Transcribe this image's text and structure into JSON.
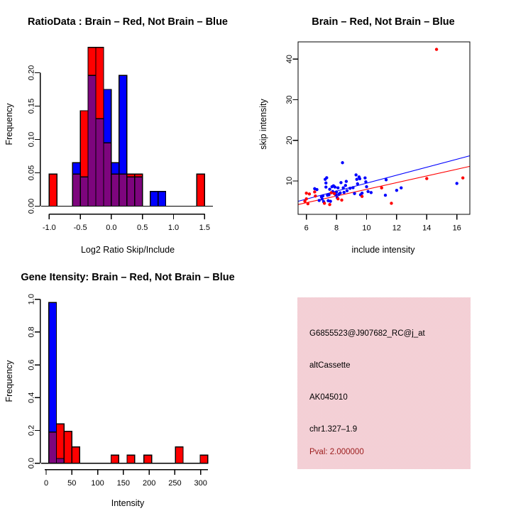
{
  "colors": {
    "brain_red": "#ff0000",
    "not_brain_blue": "#0000ff",
    "overlap_purple": "#7d057d",
    "background": "#ffffff",
    "info_box_pink": "#f6c3cf",
    "info_box_pink_alt": "#f1dcdc",
    "pval_text": "#9b1b1b",
    "axis_text": "#000000"
  },
  "chart_data": [
    {
      "type": "histogram",
      "title": "RatioData : Brain – Red, Not Brain – Blue",
      "xlabel": "Log2 Ratio Skip/Include",
      "ylabel": "Frequency",
      "legend": {
        "brain": "red",
        "not_brain": "blue",
        "overlap": "purple"
      },
      "xlim": [
        -1.13,
        1.63
      ],
      "ylim": [
        0,
        0.239
      ],
      "xticks": [
        -1.0,
        -0.5,
        0.0,
        0.5,
        1.0,
        1.5
      ],
      "xtick_labels": [
        "-1.0",
        "-0.5",
        "0.0",
        "0.5",
        "1.0",
        "1.5"
      ],
      "yticks": [
        0.0,
        0.05,
        0.1,
        0.15,
        0.2
      ],
      "ytick_labels": [
        "0.00",
        "0.05",
        "0.10",
        "0.15",
        "0.20"
      ],
      "bins": [
        {
          "x0": -1.0,
          "x1": -0.875,
          "red": 0.048,
          "blue": 0
        },
        {
          "x0": -0.625,
          "x1": -0.5,
          "red": 0.048,
          "blue": 0.065
        },
        {
          "x0": -0.5,
          "x1": -0.375,
          "red": 0.143,
          "blue": 0.044
        },
        {
          "x0": -0.375,
          "x1": -0.25,
          "red": 0.238,
          "blue": 0.196
        },
        {
          "x0": -0.25,
          "x1": -0.125,
          "red": 0.238,
          "blue": 0.131
        },
        {
          "x0": -0.125,
          "x1": 0.0,
          "red": 0.095,
          "blue": 0.175
        },
        {
          "x0": 0.0,
          "x1": 0.125,
          "red": 0.048,
          "blue": 0.065
        },
        {
          "x0": 0.125,
          "x1": 0.25,
          "red": 0.048,
          "blue": 0.196
        },
        {
          "x0": 0.25,
          "x1": 0.375,
          "red": 0.048,
          "blue": 0.044
        },
        {
          "x0": 0.375,
          "x1": 0.5,
          "red": 0.048,
          "blue": 0.044
        },
        {
          "x0": 0.625,
          "x1": 0.75,
          "red": 0,
          "blue": 0.022
        },
        {
          "x0": 0.75,
          "x1": 0.875,
          "red": 0,
          "blue": 0.022
        },
        {
          "x0": 1.375,
          "x1": 1.5,
          "red": 0.048,
          "blue": 0
        }
      ]
    },
    {
      "type": "scatter",
      "title": "Brain – Red, Not Brain – Blue",
      "xlabel": "include intensity",
      "ylabel": "skip intensity",
      "xlim": [
        5.45,
        16.86
      ],
      "ylim": [
        1.8,
        44.3
      ],
      "xticks": [
        6,
        8,
        10,
        12,
        14,
        16
      ],
      "xtick_labels": [
        "6",
        "8",
        "10",
        "12",
        "14",
        "16"
      ],
      "yticks": [
        10,
        20,
        30,
        40
      ],
      "ytick_labels": [
        "10",
        "20",
        "30",
        "40"
      ],
      "blue_points": [
        [
          6.55,
          8.1
        ],
        [
          6.7,
          7.9
        ],
        [
          6.85,
          5.2
        ],
        [
          7.0,
          6.1
        ],
        [
          7.05,
          5.55
        ],
        [
          7.1,
          6.35
        ],
        [
          7.15,
          4.9
        ],
        [
          7.25,
          10.4
        ],
        [
          7.3,
          9.5
        ],
        [
          7.3,
          8.5
        ],
        [
          7.35,
          10.8
        ],
        [
          7.4,
          6.5
        ],
        [
          7.45,
          5.15
        ],
        [
          7.5,
          6.6
        ],
        [
          7.55,
          7.95
        ],
        [
          7.6,
          5.0
        ],
        [
          7.7,
          8.6
        ],
        [
          7.75,
          7.4
        ],
        [
          7.8,
          8.8
        ],
        [
          7.85,
          7.0
        ],
        [
          7.9,
          8.5
        ],
        [
          7.95,
          6.6
        ],
        [
          8.0,
          7.3
        ],
        [
          8.05,
          5.9
        ],
        [
          8.1,
          8.3
        ],
        [
          8.15,
          6.7
        ],
        [
          8.25,
          7.05
        ],
        [
          8.3,
          9.6
        ],
        [
          8.4,
          14.5
        ],
        [
          8.45,
          8.3
        ],
        [
          8.5,
          7.2
        ],
        [
          8.6,
          8.9
        ],
        [
          8.65,
          9.9
        ],
        [
          8.7,
          7.6
        ],
        [
          8.9,
          8.2
        ],
        [
          9.1,
          8.35
        ],
        [
          9.2,
          6.9
        ],
        [
          9.3,
          11.5
        ],
        [
          9.35,
          10.4
        ],
        [
          9.4,
          9.3
        ],
        [
          9.5,
          11.0
        ],
        [
          9.55,
          10.55
        ],
        [
          9.6,
          6.6
        ],
        [
          9.7,
          7.0
        ],
        [
          9.9,
          10.75
        ],
        [
          9.95,
          9.8
        ],
        [
          10.0,
          8.6
        ],
        [
          10.1,
          7.4
        ],
        [
          10.3,
          7.15
        ],
        [
          11.25,
          6.5
        ],
        [
          11.3,
          10.3
        ],
        [
          12.0,
          7.7
        ],
        [
          12.3,
          8.3
        ],
        [
          16.0,
          9.4
        ]
      ],
      "red_points": [
        [
          5.9,
          5.0
        ],
        [
          6.0,
          5.6
        ],
        [
          6.0,
          7.0
        ],
        [
          6.1,
          4.4
        ],
        [
          6.2,
          6.8
        ],
        [
          6.55,
          7.3
        ],
        [
          6.6,
          6.3
        ],
        [
          7.2,
          4.5
        ],
        [
          7.55,
          4.2
        ],
        [
          7.65,
          7.1
        ],
        [
          7.85,
          6.9
        ],
        [
          8.1,
          5.6
        ],
        [
          8.35,
          5.3
        ],
        [
          9.7,
          6.2
        ],
        [
          11.0,
          8.3
        ],
        [
          11.65,
          4.5
        ],
        [
          14.0,
          10.6
        ],
        [
          14.65,
          42.4
        ],
        [
          16.4,
          10.75
        ]
      ],
      "fit_lines": [
        {
          "series": "not_brain",
          "color": "#0000ff",
          "x": [
            5.45,
            16.86
          ],
          "y": [
            5.0,
            16.2
          ]
        },
        {
          "series": "brain",
          "color": "#ff0000",
          "x": [
            5.45,
            16.86
          ],
          "y": [
            4.2,
            13.6
          ]
        }
      ]
    },
    {
      "type": "histogram",
      "title": "Gene Itensity: Brain – Red, Not Brain – Blue",
      "xlabel": "Intensity",
      "ylabel": "Frequency",
      "legend": {
        "brain": "red",
        "not_brain": "blue",
        "overlap": "purple"
      },
      "xlim": [
        -10,
        314
      ],
      "ylim": [
        0,
        1.01
      ],
      "xticks": [
        0,
        50,
        100,
        150,
        200,
        250,
        300
      ],
      "xtick_labels": [
        "0",
        "50",
        "100",
        "150",
        "200",
        "250",
        "300"
      ],
      "yticks": [
        0.0,
        0.2,
        0.4,
        0.6,
        0.8,
        1.0
      ],
      "ytick_labels": [
        "0.0",
        "0.2",
        "0.4",
        "0.6",
        "0.8",
        "1.0"
      ],
      "bins": [
        {
          "x0": 5,
          "x1": 20,
          "red": 0.19,
          "blue": 0.98
        },
        {
          "x0": 20,
          "x1": 35,
          "red": 0.24,
          "blue": 0.029
        },
        {
          "x0": 35,
          "x1": 50,
          "red": 0.195,
          "blue": 0
        },
        {
          "x0": 50,
          "x1": 65,
          "red": 0.1,
          "blue": 0
        },
        {
          "x0": 126,
          "x1": 141,
          "red": 0.05,
          "blue": 0
        },
        {
          "x0": 157,
          "x1": 172,
          "red": 0.05,
          "blue": 0
        },
        {
          "x0": 190,
          "x1": 205,
          "red": 0.05,
          "blue": 0
        },
        {
          "x0": 251,
          "x1": 266,
          "red": 0.1,
          "blue": 0
        },
        {
          "x0": 299,
          "x1": 314,
          "red": 0.05,
          "blue": 0
        }
      ]
    }
  ],
  "info": {
    "probe_id": "G6855523@J907682_RC@j_at",
    "event_type": "altCassette",
    "accession": "AK045010",
    "locus": "chr1.327–1.9",
    "pval": "Pval: 2.000000"
  }
}
